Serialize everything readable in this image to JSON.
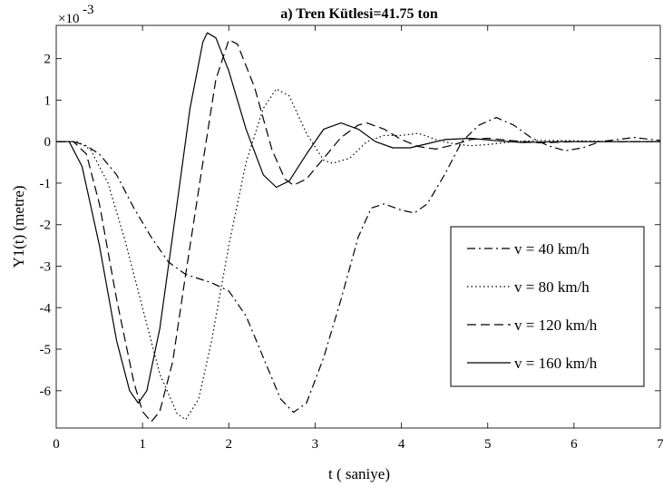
{
  "chart_data": {
    "type": "line",
    "title": "a) Tren Kütlesi=41.75 ton",
    "xlabel": "t ( saniye)",
    "ylabel": "Y1(t) (metre)",
    "y_exponent_label": "×10",
    "y_exponent_power": "-3",
    "xlim": [
      0,
      7
    ],
    "ylim": [
      -6.9,
      2.8
    ],
    "x_ticks": [
      0,
      1,
      2,
      3,
      4,
      5,
      6,
      7
    ],
    "x_tick_labels": [
      "0",
      "1",
      "2",
      "3",
      "4",
      "5",
      "6",
      "7"
    ],
    "y_ticks": [
      2,
      1,
      0,
      -1,
      -2,
      -3,
      -4,
      -5,
      -6
    ],
    "y_tick_labels": [
      "2",
      "1",
      "0",
      "-1",
      "-2",
      "-3",
      "-4",
      "-5",
      "-6"
    ],
    "grid": false,
    "legend_position": "right-middle",
    "series": [
      {
        "name": "v = 40 km/h",
        "dash": "dashdot",
        "points": [
          [
            0,
            0
          ],
          [
            0.2,
            0
          ],
          [
            0.35,
            -0.1
          ],
          [
            0.5,
            -0.3
          ],
          [
            0.7,
            -0.8
          ],
          [
            0.9,
            -1.6
          ],
          [
            1.1,
            -2.3
          ],
          [
            1.3,
            -2.9
          ],
          [
            1.5,
            -3.2
          ],
          [
            1.8,
            -3.4
          ],
          [
            2.0,
            -3.6
          ],
          [
            2.2,
            -4.2
          ],
          [
            2.4,
            -5.2
          ],
          [
            2.6,
            -6.2
          ],
          [
            2.75,
            -6.52
          ],
          [
            2.9,
            -6.3
          ],
          [
            3.1,
            -5.2
          ],
          [
            3.3,
            -3.8
          ],
          [
            3.5,
            -2.3
          ],
          [
            3.65,
            -1.6
          ],
          [
            3.8,
            -1.5
          ],
          [
            4.0,
            -1.65
          ],
          [
            4.15,
            -1.72
          ],
          [
            4.3,
            -1.5
          ],
          [
            4.5,
            -0.8
          ],
          [
            4.7,
            0
          ],
          [
            4.9,
            0.4
          ],
          [
            5.1,
            0.58
          ],
          [
            5.3,
            0.4
          ],
          [
            5.5,
            0.1
          ],
          [
            5.7,
            -0.1
          ],
          [
            5.9,
            -0.22
          ],
          [
            6.1,
            -0.15
          ],
          [
            6.3,
            0
          ],
          [
            6.5,
            0.05
          ],
          [
            6.7,
            0.1
          ],
          [
            6.9,
            0.05
          ],
          [
            7.0,
            0.03
          ]
        ]
      },
      {
        "name": "v = 80 km/h",
        "dash": "dotted",
        "points": [
          [
            0,
            0
          ],
          [
            0.25,
            0
          ],
          [
            0.4,
            -0.2
          ],
          [
            0.6,
            -1.0
          ],
          [
            0.8,
            -2.4
          ],
          [
            1.0,
            -4.0
          ],
          [
            1.2,
            -5.6
          ],
          [
            1.4,
            -6.55
          ],
          [
            1.5,
            -6.7
          ],
          [
            1.65,
            -6.2
          ],
          [
            1.8,
            -4.8
          ],
          [
            2.0,
            -2.5
          ],
          [
            2.2,
            -0.5
          ],
          [
            2.4,
            0.8
          ],
          [
            2.55,
            1.27
          ],
          [
            2.7,
            1.1
          ],
          [
            2.9,
            0.2
          ],
          [
            3.1,
            -0.45
          ],
          [
            3.2,
            -0.52
          ],
          [
            3.4,
            -0.4
          ],
          [
            3.6,
            0
          ],
          [
            3.8,
            0.15
          ],
          [
            4.0,
            0.15
          ],
          [
            4.2,
            0.2
          ],
          [
            4.4,
            0.05
          ],
          [
            4.6,
            -0.05
          ],
          [
            4.8,
            -0.1
          ],
          [
            5.0,
            -0.07
          ],
          [
            5.3,
            0
          ],
          [
            5.6,
            0.03
          ],
          [
            6.0,
            0.02
          ],
          [
            6.5,
            0
          ],
          [
            7.0,
            0
          ]
        ]
      },
      {
        "name": "v = 120 km/h",
        "dash": "dashed",
        "points": [
          [
            0,
            0
          ],
          [
            0.2,
            0
          ],
          [
            0.35,
            -0.3
          ],
          [
            0.5,
            -1.5
          ],
          [
            0.7,
            -3.8
          ],
          [
            0.9,
            -5.8
          ],
          [
            1.0,
            -6.5
          ],
          [
            1.1,
            -6.75
          ],
          [
            1.2,
            -6.5
          ],
          [
            1.35,
            -5.3
          ],
          [
            1.5,
            -3.2
          ],
          [
            1.7,
            -0.5
          ],
          [
            1.85,
            1.5
          ],
          [
            2.0,
            2.45
          ],
          [
            2.1,
            2.35
          ],
          [
            2.3,
            1.3
          ],
          [
            2.5,
            -0.2
          ],
          [
            2.65,
            -0.9
          ],
          [
            2.75,
            -1.05
          ],
          [
            2.9,
            -0.9
          ],
          [
            3.1,
            -0.4
          ],
          [
            3.3,
            0.1
          ],
          [
            3.5,
            0.4
          ],
          [
            3.6,
            0.45
          ],
          [
            3.8,
            0.3
          ],
          [
            4.0,
            0.05
          ],
          [
            4.2,
            -0.12
          ],
          [
            4.4,
            -0.18
          ],
          [
            4.6,
            -0.08
          ],
          [
            4.8,
            0.05
          ],
          [
            5.0,
            0.08
          ],
          [
            5.3,
            0.02
          ],
          [
            5.6,
            -0.03
          ],
          [
            6.0,
            0
          ],
          [
            6.5,
            0
          ],
          [
            7.0,
            0
          ]
        ]
      },
      {
        "name": "v = 160 km/h",
        "dash": "solid",
        "points": [
          [
            0,
            0
          ],
          [
            0.15,
            0
          ],
          [
            0.3,
            -0.6
          ],
          [
            0.5,
            -2.5
          ],
          [
            0.7,
            -4.8
          ],
          [
            0.85,
            -6.0
          ],
          [
            0.95,
            -6.3
          ],
          [
            1.05,
            -6.0
          ],
          [
            1.2,
            -4.5
          ],
          [
            1.4,
            -1.5
          ],
          [
            1.55,
            0.8
          ],
          [
            1.7,
            2.4
          ],
          [
            1.75,
            2.62
          ],
          [
            1.85,
            2.5
          ],
          [
            2.0,
            1.7
          ],
          [
            2.2,
            0.3
          ],
          [
            2.4,
            -0.8
          ],
          [
            2.55,
            -1.1
          ],
          [
            2.7,
            -0.95
          ],
          [
            2.9,
            -0.3
          ],
          [
            3.1,
            0.3
          ],
          [
            3.3,
            0.45
          ],
          [
            3.5,
            0.3
          ],
          [
            3.7,
            0
          ],
          [
            3.9,
            -0.15
          ],
          [
            4.1,
            -0.15
          ],
          [
            4.3,
            -0.05
          ],
          [
            4.5,
            0.05
          ],
          [
            4.8,
            0.08
          ],
          [
            5.1,
            0.02
          ],
          [
            5.4,
            -0.02
          ],
          [
            5.8,
            0
          ],
          [
            6.3,
            0
          ],
          [
            7.0,
            0
          ]
        ]
      }
    ]
  }
}
